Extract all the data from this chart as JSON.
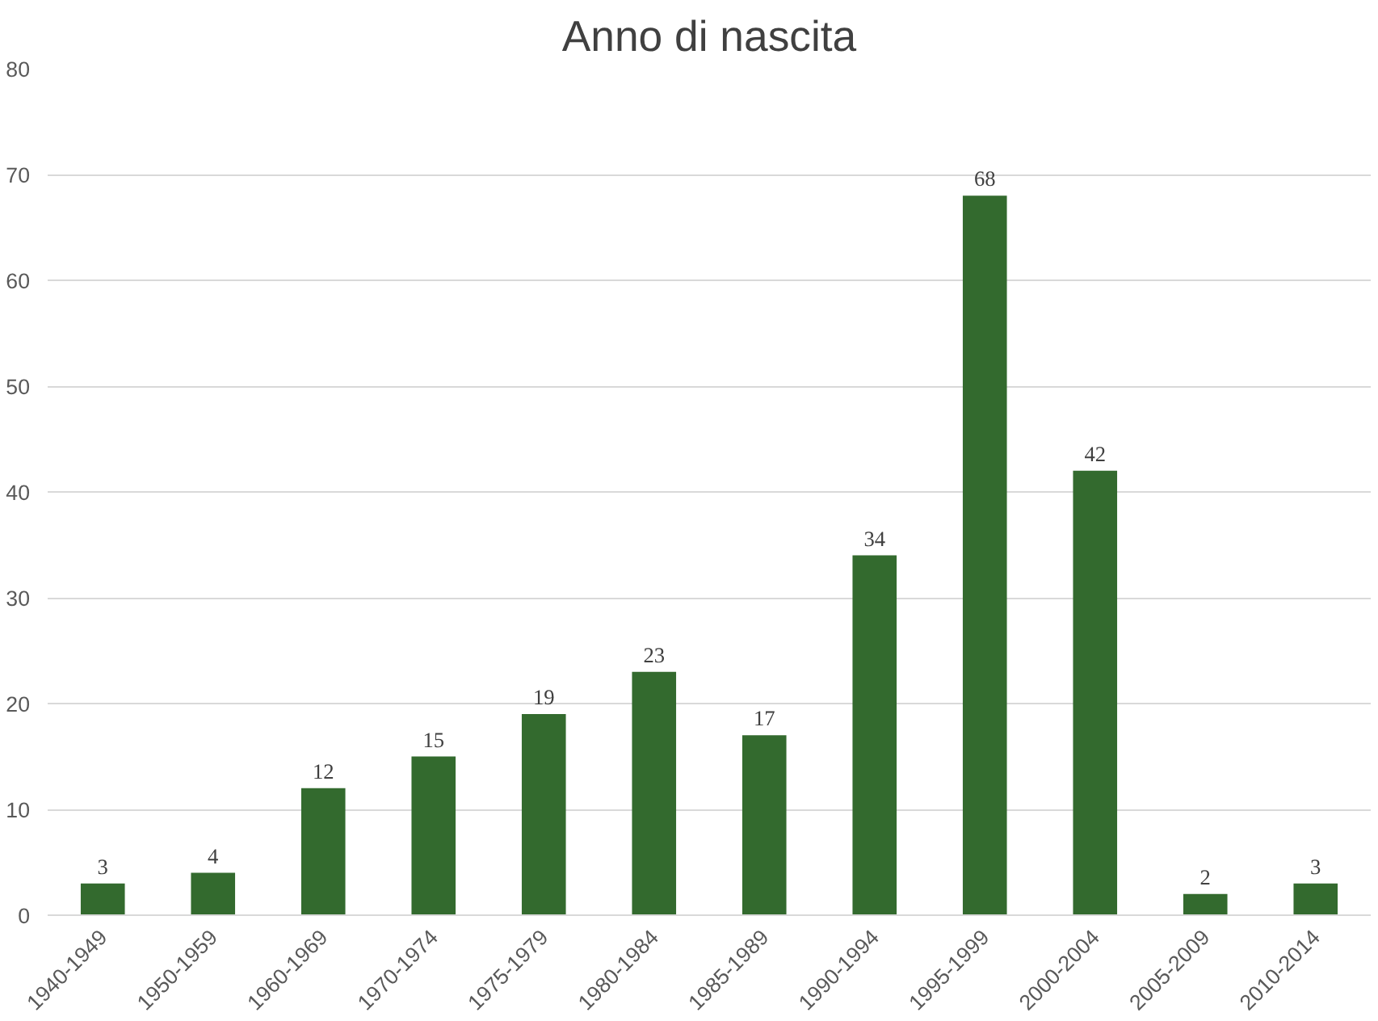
{
  "chart_data": {
    "type": "bar",
    "title": "Anno di nascita",
    "categories": [
      "1940-1949",
      "1950-1959",
      "1960-1969",
      "1970-1974",
      "1975-1979",
      "1980-1984",
      "1985-1989",
      "1990-1994",
      "1995-1999",
      "2000-2004",
      "2005-2009",
      "2010-2014"
    ],
    "values": [
      3,
      4,
      12,
      15,
      19,
      23,
      17,
      34,
      68,
      42,
      2,
      3
    ],
    "color": "#336a2e",
    "ylim": [
      0,
      80
    ],
    "yticks": [
      0,
      10,
      20,
      30,
      40,
      50,
      60,
      70,
      80
    ],
    "grid": "y",
    "data_labels": true
  }
}
